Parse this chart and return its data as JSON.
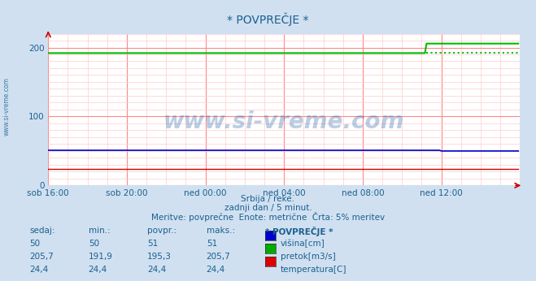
{
  "title": "* POVPREČJE *",
  "bg_color": "#d0e0f0",
  "plot_bg_color": "#ffffff",
  "grid_color_major": "#ff8888",
  "grid_color_minor": "#ffcccc",
  "xlabel_ticks": [
    "sob 16:00",
    "sob 20:00",
    "ned 00:00",
    "ned 04:00",
    "ned 08:00",
    "ned 12:00"
  ],
  "ylim": [
    0,
    220
  ],
  "xlim": [
    0,
    288
  ],
  "caption_line1": "Srbija / reke.",
  "caption_line2": "zadnji dan / 5 minut.",
  "caption_line3": "Meritve: povprečne  Enote: metrične  Črta: 5% meritev",
  "table_headers": [
    "sedaj:",
    "min.:",
    "povpr.:",
    "maks.:",
    "* POVPREČJE *"
  ],
  "table_rows": [
    [
      "50",
      "50",
      "51",
      "51",
      "višina[cm]",
      "#0000cc"
    ],
    [
      "205,7",
      "191,9",
      "195,3",
      "205,7",
      "pretok[m3/s]",
      "#00aa00"
    ],
    [
      "24,4",
      "24,4",
      "24,4",
      "24,4",
      "temperatura[C]",
      "#dd0000"
    ]
  ],
  "watermark_text": "www.si-vreme.com",
  "watermark_color": "#1a5fa8",
  "watermark_alpha": 0.3,
  "text_color": "#1a6090",
  "tick_color": "#1a6090",
  "n_points": 288,
  "jump_x_green": 231,
  "green_before": 191.9,
  "green_after": 205.7,
  "green_dashed": 191.9,
  "jump_x_blue": 240,
  "blue_before": 51,
  "blue_after": 50,
  "red_value": 24.4,
  "scale_max": 220
}
